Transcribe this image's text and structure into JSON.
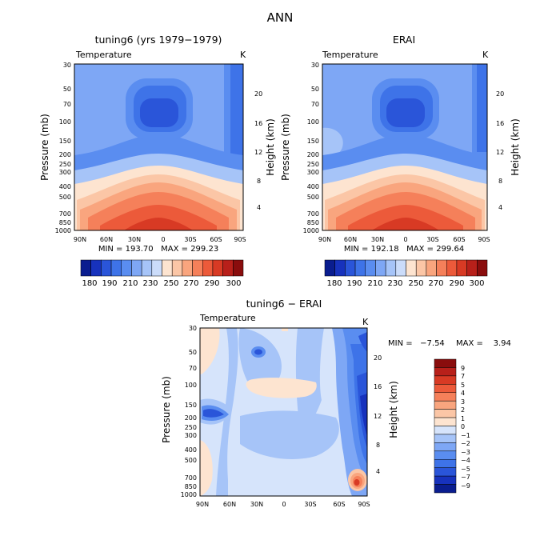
{
  "figure_title": "ANN",
  "chart_data": [
    {
      "type": "heatmap",
      "title": "tuning6 (yrs 1979−1979)",
      "variable": "Temperature",
      "units": "K",
      "ylabel": "Pressure (mb)",
      "ylabel_right": "Height (km)",
      "x_ticks": [
        "90N",
        "60N",
        "30N",
        "0",
        "30S",
        "60S",
        "90S"
      ],
      "y_ticks": [
        "30",
        "50",
        "70",
        "100",
        "150",
        "200",
        "250",
        "300",
        "400",
        "500",
        "700",
        "850",
        "1000"
      ],
      "height_ticks": [
        "20",
        "16",
        "12",
        "8",
        "4"
      ],
      "stats": "MIN = 193.70   MAX = 299.23",
      "min": 193.7,
      "max": 299.23,
      "colorbar_labels": [
        "180",
        "190",
        "210",
        "230",
        "250",
        "270",
        "290",
        "300"
      ],
      "colorbar_colors": [
        "#0a1d8f",
        "#1732bd",
        "#2a55d9",
        "#3e73e8",
        "#5a8df0",
        "#7ea7f5",
        "#a6c4f8",
        "#cbdcfa",
        "#fde4d0",
        "#fbc6a6",
        "#f9a57e",
        "#f5805a",
        "#ec5a3a",
        "#d83a24",
        "#b8201a",
        "#8a0d0d"
      ]
    },
    {
      "type": "heatmap",
      "title": "ERAI",
      "variable": "Temperature",
      "units": "K",
      "ylabel": "Pressure (mb)",
      "ylabel_right": "Height (km)",
      "x_ticks": [
        "90N",
        "60N",
        "30N",
        "0",
        "30S",
        "60S",
        "90S"
      ],
      "y_ticks": [
        "30",
        "50",
        "70",
        "100",
        "150",
        "200",
        "250",
        "300",
        "400",
        "500",
        "700",
        "850",
        "1000"
      ],
      "height_ticks": [
        "20",
        "16",
        "12",
        "8",
        "4"
      ],
      "stats": "MIN = 192.18   MAX = 299.64",
      "min": 192.18,
      "max": 299.64,
      "colorbar_labels": [
        "180",
        "190",
        "210",
        "230",
        "250",
        "270",
        "290",
        "300"
      ],
      "colorbar_colors": [
        "#0a1d8f",
        "#1732bd",
        "#2a55d9",
        "#3e73e8",
        "#5a8df0",
        "#7ea7f5",
        "#a6c4f8",
        "#cbdcfa",
        "#fde4d0",
        "#fbc6a6",
        "#f9a57e",
        "#f5805a",
        "#ec5a3a",
        "#d83a24",
        "#b8201a",
        "#8a0d0d"
      ]
    },
    {
      "type": "heatmap",
      "title": "tuning6 − ERAI",
      "variable": "Temperature",
      "units": "K",
      "ylabel": "Pressure (mb)",
      "ylabel_right": "Height (km)",
      "x_ticks": [
        "90N",
        "60N",
        "30N",
        "0",
        "30S",
        "60S",
        "90S"
      ],
      "y_ticks": [
        "30",
        "50",
        "70",
        "100",
        "150",
        "200",
        "250",
        "300",
        "400",
        "500",
        "700",
        "850",
        "1000"
      ],
      "height_ticks": [
        "20",
        "16",
        "12",
        "8",
        "4"
      ],
      "stats_min": "MIN =   −7.54",
      "stats_max": "MAX =    3.94",
      "min": -7.54,
      "max": 3.94,
      "colorbar_labels": [
        "9",
        "7",
        "5",
        "4",
        "3",
        "2",
        "1",
        "0",
        "−1",
        "−2",
        "−3",
        "−4",
        "−5",
        "−7",
        "−9"
      ],
      "colorbar_colors": [
        "#8a0d0d",
        "#b8201a",
        "#d83a24",
        "#ec5a3a",
        "#f5805a",
        "#f9a57e",
        "#fbc6a6",
        "#fde4d0",
        "#d6e4fb",
        "#a6c4f8",
        "#7ea7f5",
        "#5a8df0",
        "#3e73e8",
        "#2a55d9",
        "#1732bd",
        "#0a1d8f"
      ]
    }
  ]
}
